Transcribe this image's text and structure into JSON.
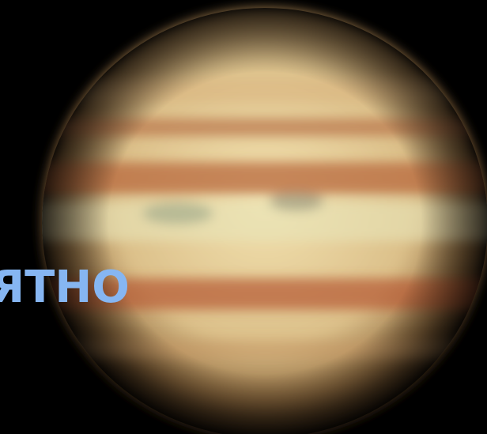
{
  "caption": {
    "text": "ЯТНО"
  }
}
